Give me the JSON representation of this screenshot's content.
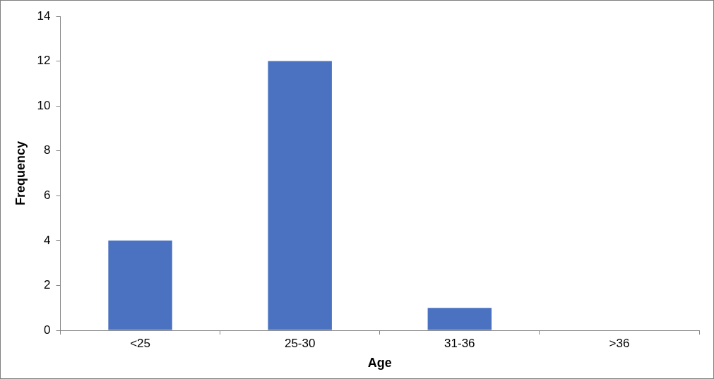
{
  "chart_data": {
    "type": "bar",
    "x_label": "Age",
    "y_label": "Frequency",
    "categories": [
      "<25",
      "25-30",
      "31-36",
      ">36"
    ],
    "values": [
      4,
      12,
      1,
      0
    ],
    "color": "#4a72c0",
    "ylim": [
      0,
      14
    ],
    "yticks": [
      0,
      2,
      4,
      6,
      8,
      10,
      12,
      14
    ],
    "grid": false
  }
}
